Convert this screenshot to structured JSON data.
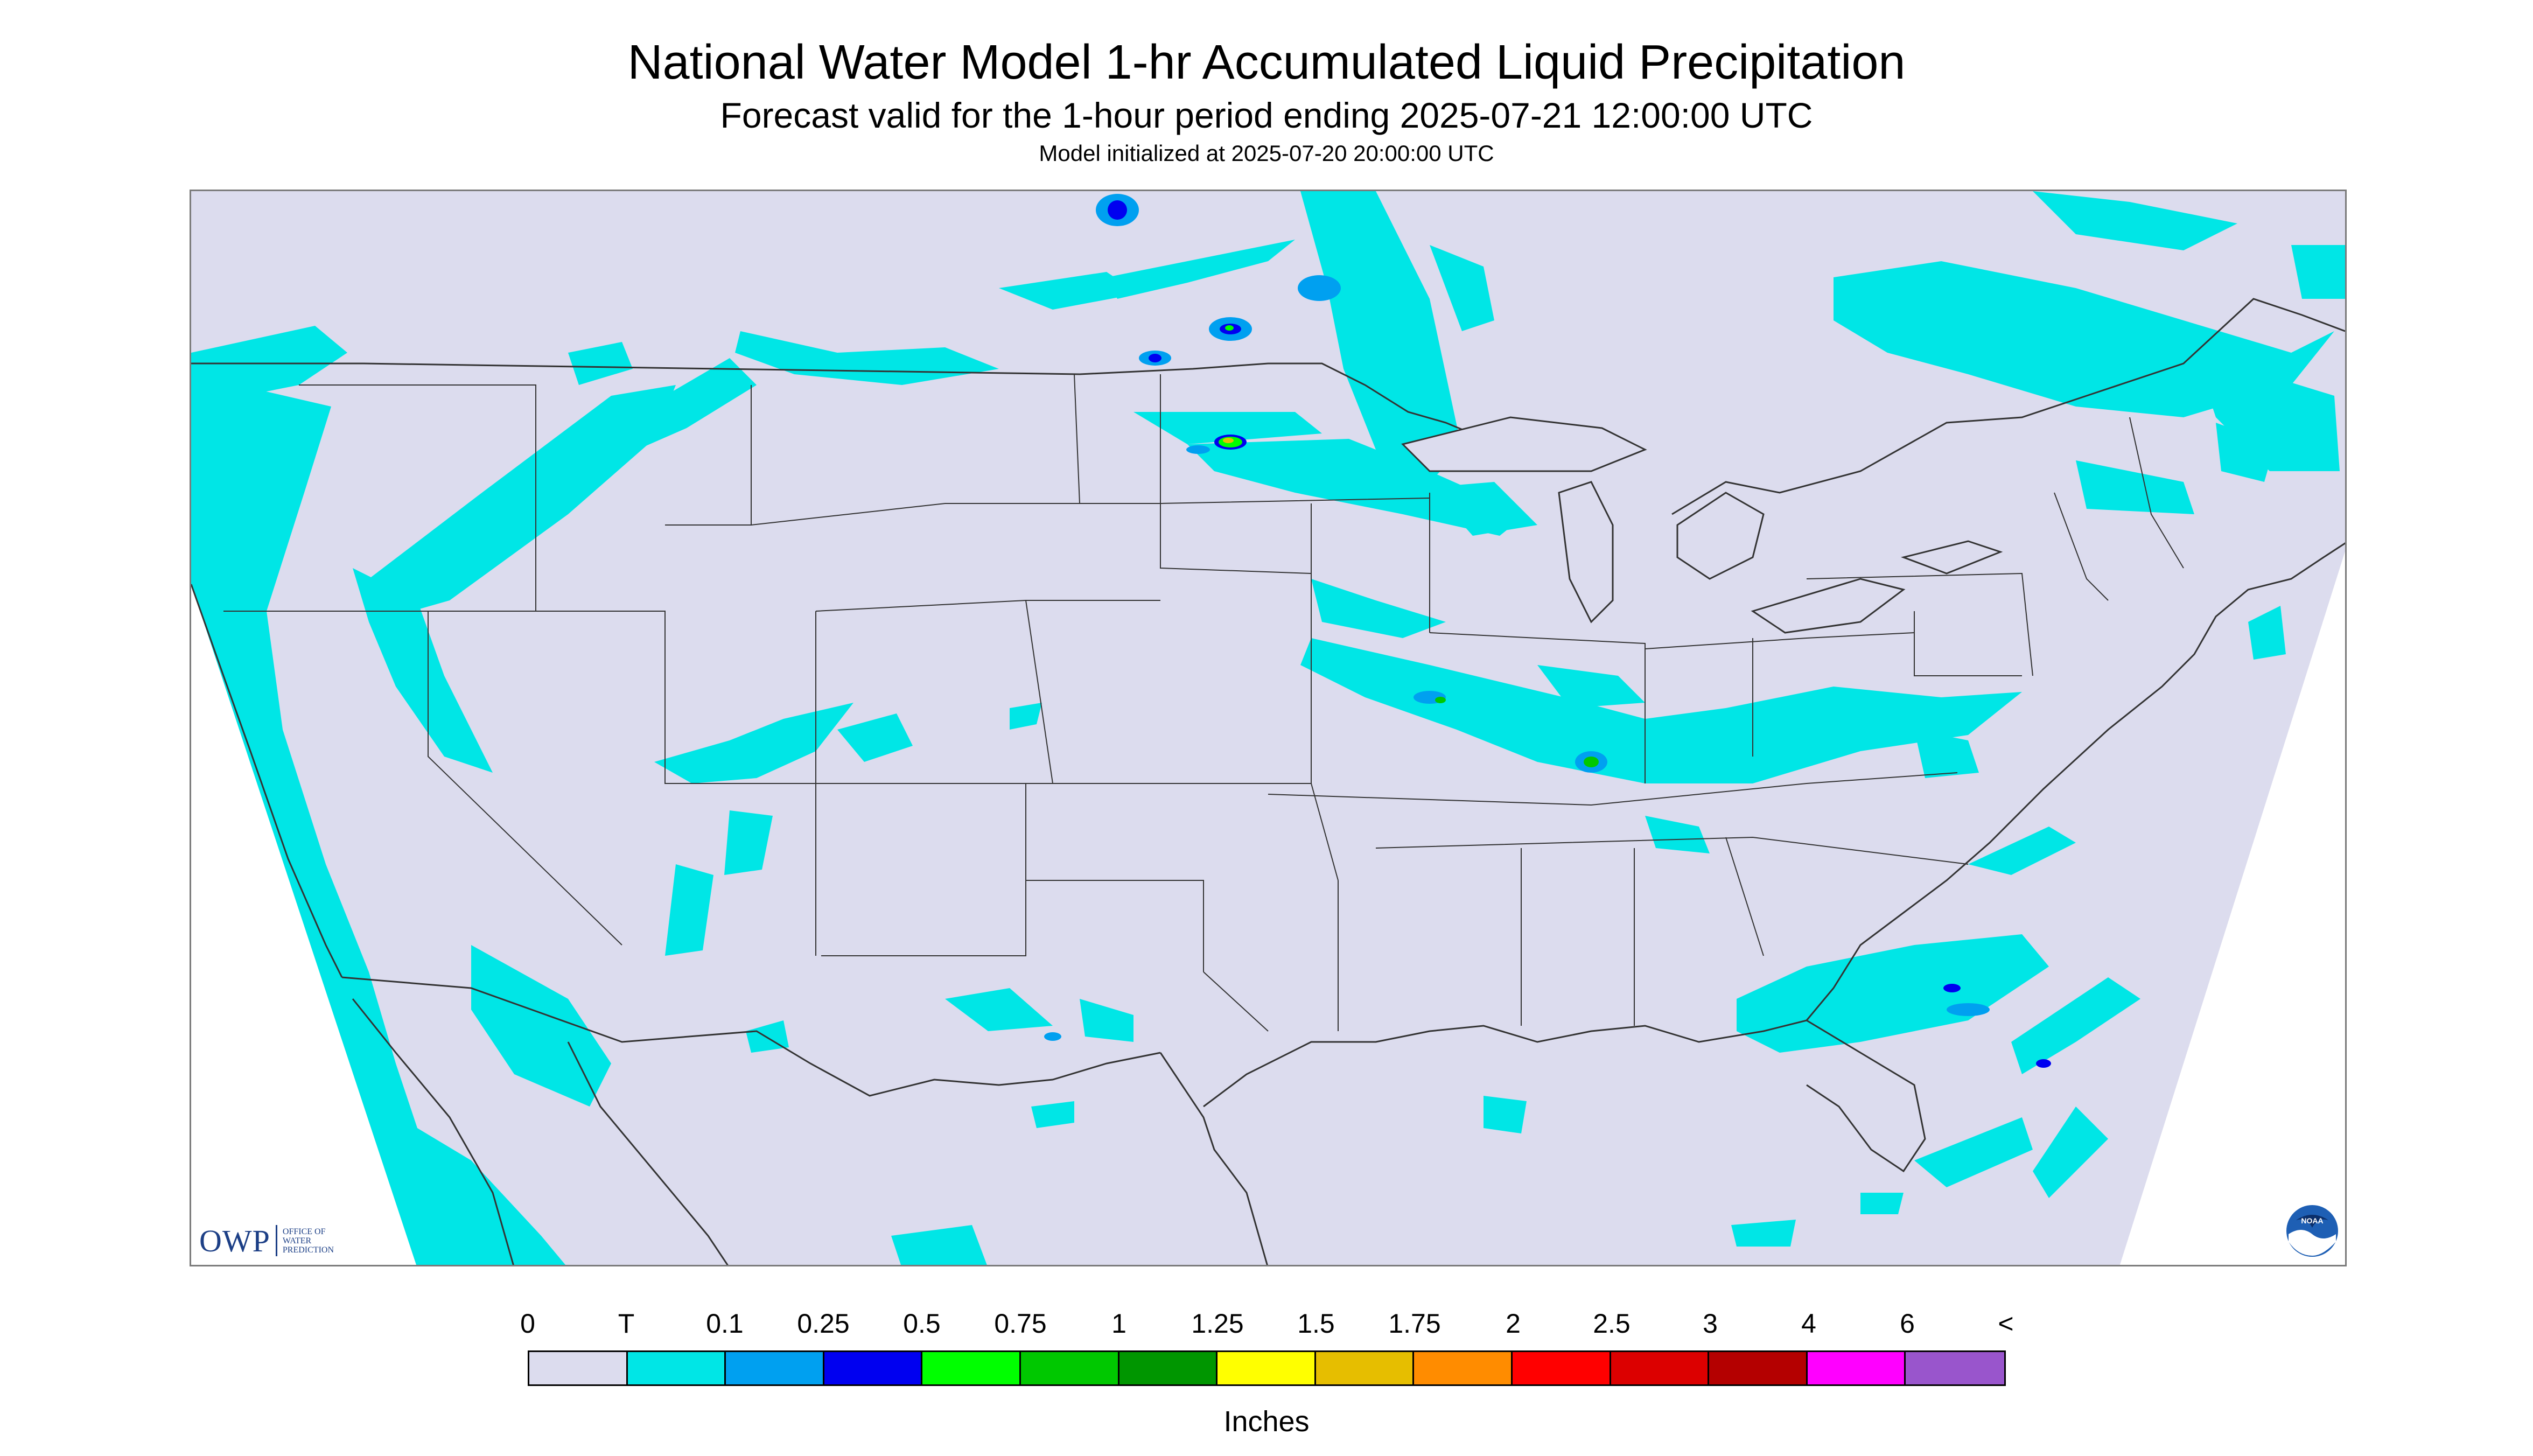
{
  "header": {
    "title": "National Water Model 1-hr Accumulated Liquid Precipitation",
    "subtitle": "Forecast valid for the 1-hour period ending 2025-07-21 12:00:00 UTC",
    "initialized": "Model initialized at 2025-07-20 20:00:00 UTC"
  },
  "map": {
    "background_color": "#dcdcee",
    "outside_color": "#ffffff",
    "border_color": "#333333"
  },
  "logos": {
    "owp": {
      "word": "OWP",
      "line1": "OFFICE OF",
      "line2": "WATER",
      "line3": "PREDICTION",
      "icon": "owp-logo"
    },
    "noaa": {
      "text": "NOAA",
      "icon": "noaa-logo"
    }
  },
  "legend": {
    "labels": [
      "0",
      "T",
      "0.1",
      "0.25",
      "0.5",
      "0.75",
      "1",
      "1.25",
      "1.5",
      "1.75",
      "2",
      "2.5",
      "3",
      "4",
      "6",
      "<"
    ],
    "colors": [
      "#dcdcee",
      "#00e6e6",
      "#00a0f0",
      "#0000f0",
      "#00ff00",
      "#00c800",
      "#009600",
      "#ffff00",
      "#e6be00",
      "#ff8c00",
      "#ff0000",
      "#dc0000",
      "#b40000",
      "#ff00ff",
      "#9955cc"
    ],
    "units": "Inches"
  }
}
